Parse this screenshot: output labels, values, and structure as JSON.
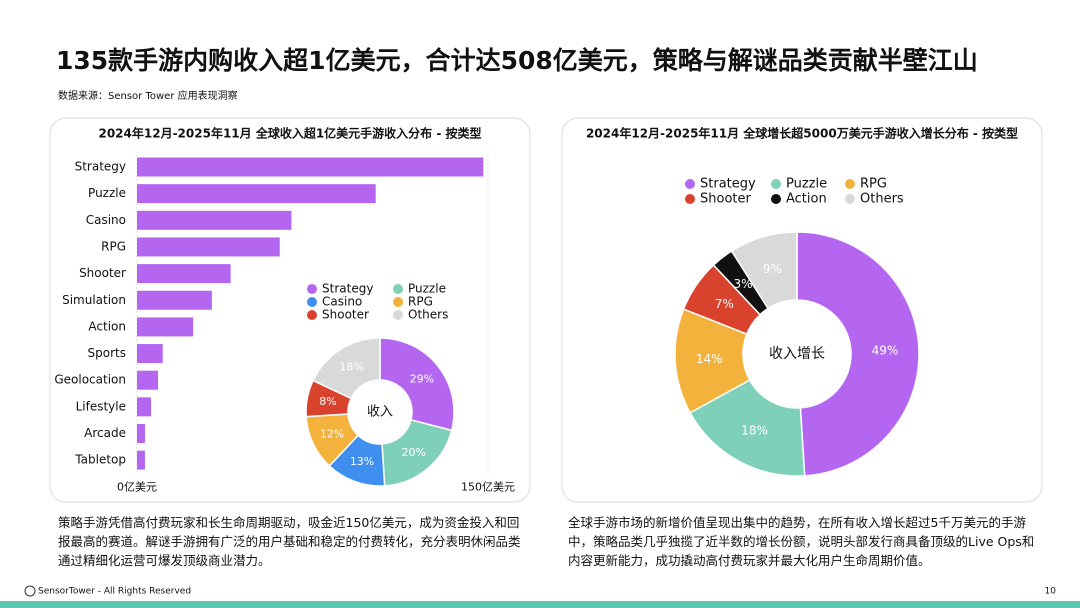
{
  "header": {
    "title": "135款手游内购收入超1亿美元，合计达508亿美元，策略与解谜品类贡献半壁江山",
    "source": "数据来源：Sensor Tower 应用表现洞察"
  },
  "chart_data": [
    {
      "type": "bar",
      "orientation": "horizontal",
      "title": "2024年12月-2025年11月 全球收入超1亿美元手游收入分布 - 按类型",
      "categories": [
        "Strategy",
        "Puzzle",
        "Casino",
        "RPG",
        "Shooter",
        "Simulation",
        "Action",
        "Sports",
        "Geolocation",
        "Lifestyle",
        "Arcade",
        "Tabletop"
      ],
      "values": [
        148,
        102,
        66,
        61,
        40,
        32,
        24,
        11,
        9,
        6,
        3.4,
        3.4
      ],
      "color": "#b466f1",
      "xlim": [
        0,
        150
      ],
      "xticks": [
        {
          "value": 0,
          "label": "0亿美元"
        },
        {
          "value": 150,
          "label": "150亿美元"
        }
      ],
      "grid": true
    },
    {
      "type": "pie",
      "center_label": "收入",
      "categories": [
        "Strategy",
        "Puzzle",
        "Casino",
        "RPG",
        "Shooter",
        "Others"
      ],
      "values": [
        29,
        20,
        13,
        12,
        8,
        18
      ],
      "value_labels": [
        "29%",
        "20%",
        "13%",
        "12%",
        "8%",
        "18%"
      ],
      "colors": [
        "#b466f1",
        "#7fd0b8",
        "#3f8ff0",
        "#f2b23c",
        "#d9432d",
        "#d9d9d9"
      ]
    },
    {
      "type": "pie",
      "title": "2024年12月-2025年11月 全球增长超5000万美元手游收入增长分布 - 按类型",
      "center_label": "收入增长",
      "categories": [
        "Strategy",
        "Puzzle",
        "RPG",
        "Shooter",
        "Action",
        "Others"
      ],
      "values": [
        49,
        18,
        14,
        7,
        3,
        9
      ],
      "value_labels": [
        "49%",
        "18%",
        "14%",
        "7%",
        "3%",
        "9%"
      ],
      "colors": [
        "#b466f1",
        "#7fd0b8",
        "#f2b23c",
        "#d9432d",
        "#111111",
        "#d9d9d9"
      ]
    }
  ],
  "notes": {
    "left": "策略手游凭借高付费玩家和长生命周期驱动，吸金近150亿美元，成为资金投入和回报最高的赛道。解谜手游拥有广泛的用户基础和稳定的付费转化，充分表明休闲品类通过精细化运营可爆发顶级商业潜力。",
    "right": "全球手游市场的新增价值呈现出集中的趋势，在所有收入增长超过5千万美元的手游中，策略品类几乎独揽了近半数的增长份额，说明头部发行商具备顶级的Live Ops和内容更新能力，成功撬动高付费玩家并最大化用户生命周期价值。"
  },
  "footer": {
    "copyright": "SensorTower - All Rights Reserved",
    "page": "10"
  }
}
